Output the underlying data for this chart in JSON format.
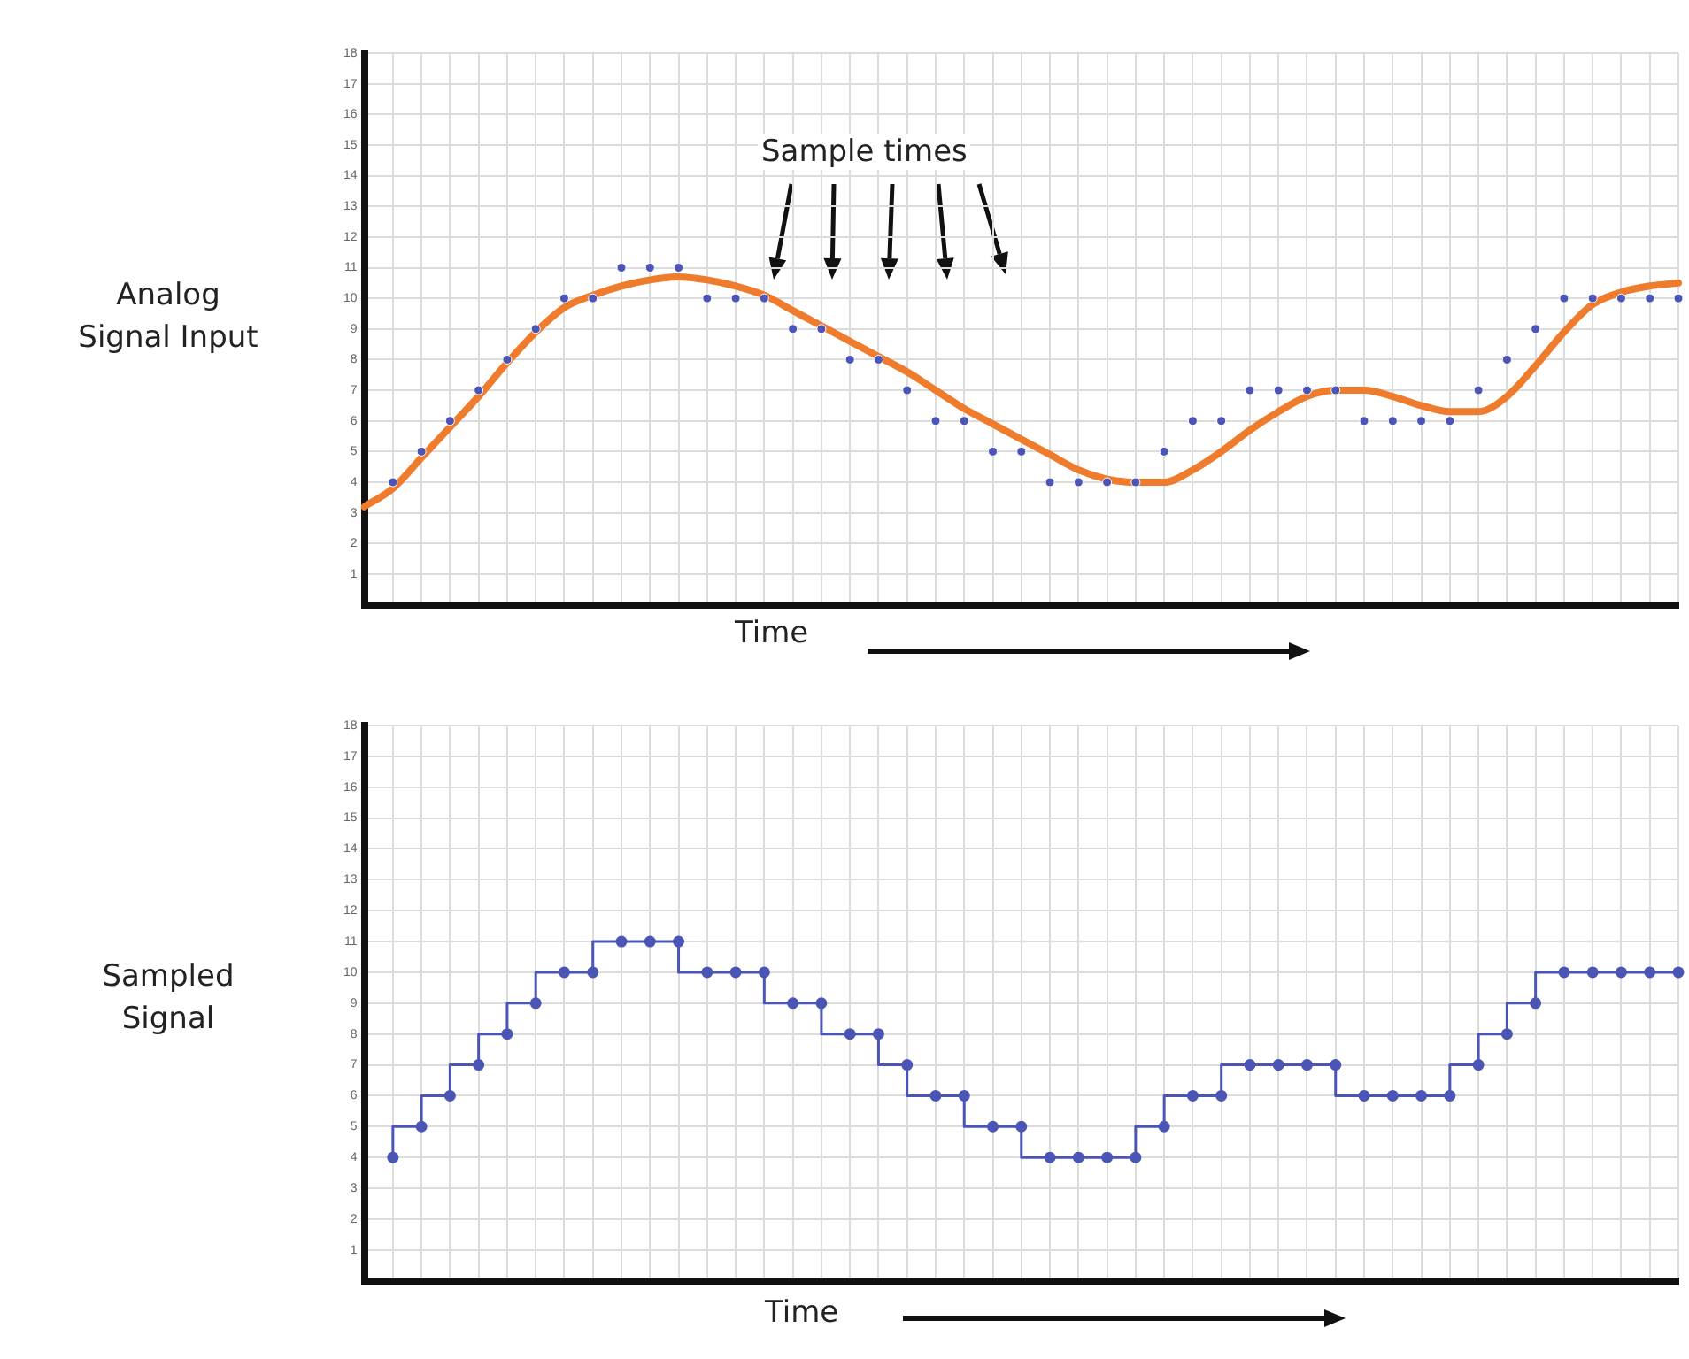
{
  "chart_data": [
    {
      "type": "line",
      "ylabel": "Analog Signal Input",
      "xlabel": "Time",
      "annotations": [
        "Sample times"
      ],
      "categories": [
        null,
        null,
        null,
        null,
        null,
        null,
        null,
        null,
        null,
        null,
        null,
        null,
        null,
        null,
        null,
        null,
        null,
        null,
        null,
        null,
        null,
        null,
        null,
        null,
        null,
        null,
        null,
        null,
        null,
        null,
        null,
        null,
        null,
        null,
        null,
        null,
        null,
        null,
        null,
        null,
        null,
        null,
        null,
        null,
        null,
        null,
        null
      ],
      "ylim": [
        0,
        18
      ],
      "yticks": [
        1,
        2,
        3,
        4,
        5,
        6,
        7,
        8,
        9,
        10,
        11,
        12,
        13,
        14,
        15,
        16,
        17,
        18
      ],
      "grid": true,
      "tick_labels": "y",
      "series": [
        {
          "color": "#ef7b2c",
          "marker": "none",
          "values": [
            3.2,
            3.8,
            4.8,
            5.8,
            6.8,
            7.9,
            8.9,
            9.7,
            10.1,
            10.4,
            10.6,
            10.7,
            10.6,
            10.4,
            10.1,
            9.6,
            9.1,
            8.6,
            8.1,
            7.6,
            7.0,
            6.4,
            5.9,
            5.4,
            4.9,
            4.4,
            4.1,
            4.0,
            4.0,
            4.4,
            5.0,
            5.7,
            6.3,
            6.8,
            7.0,
            7.0,
            6.8,
            6.5,
            6.3,
            6.3,
            6.8,
            7.8,
            8.9,
            9.8,
            10.2,
            10.4,
            10.5
          ]
        },
        {
          "type": "scatter",
          "color": "#4a55b5",
          "marker": "circle",
          "values": [
            null,
            4,
            5,
            6,
            7,
            8,
            9,
            10,
            10,
            11,
            11,
            11,
            10,
            10,
            10,
            9,
            9,
            8,
            8,
            7,
            6,
            6,
            5,
            5,
            4,
            4,
            4,
            4,
            5,
            6,
            6,
            7,
            7,
            7,
            7,
            6,
            6,
            6,
            6,
            7,
            8,
            9,
            10,
            10,
            10,
            10,
            10
          ]
        }
      ]
    },
    {
      "type": "step",
      "ylabel": "Sampled Signal",
      "xlabel": "Time",
      "categories": [
        null,
        null,
        null,
        null,
        null,
        null,
        null,
        null,
        null,
        null,
        null,
        null,
        null,
        null,
        null,
        null,
        null,
        null,
        null,
        null,
        null,
        null,
        null,
        null,
        null,
        null,
        null,
        null,
        null,
        null,
        null,
        null,
        null,
        null,
        null,
        null,
        null,
        null,
        null,
        null,
        null,
        null,
        null,
        null,
        null,
        null,
        null
      ],
      "ylim": [
        0,
        18
      ],
      "yticks": [
        1,
        2,
        3,
        4,
        5,
        6,
        7,
        8,
        9,
        10,
        11,
        12,
        13,
        14,
        15,
        16,
        17,
        18
      ],
      "grid": true,
      "tick_labels": "y",
      "marker": "circle",
      "series": [
        {
          "color": "#4a55b5",
          "values": [
            null,
            4,
            5,
            6,
            7,
            8,
            9,
            10,
            10,
            11,
            11,
            11,
            10,
            10,
            10,
            9,
            9,
            8,
            8,
            7,
            6,
            6,
            5,
            5,
            4,
            4,
            4,
            4,
            5,
            6,
            6,
            7,
            7,
            7,
            7,
            6,
            6,
            6,
            6,
            7,
            8,
            9,
            10,
            10,
            10,
            10,
            10
          ]
        }
      ]
    }
  ]
}
